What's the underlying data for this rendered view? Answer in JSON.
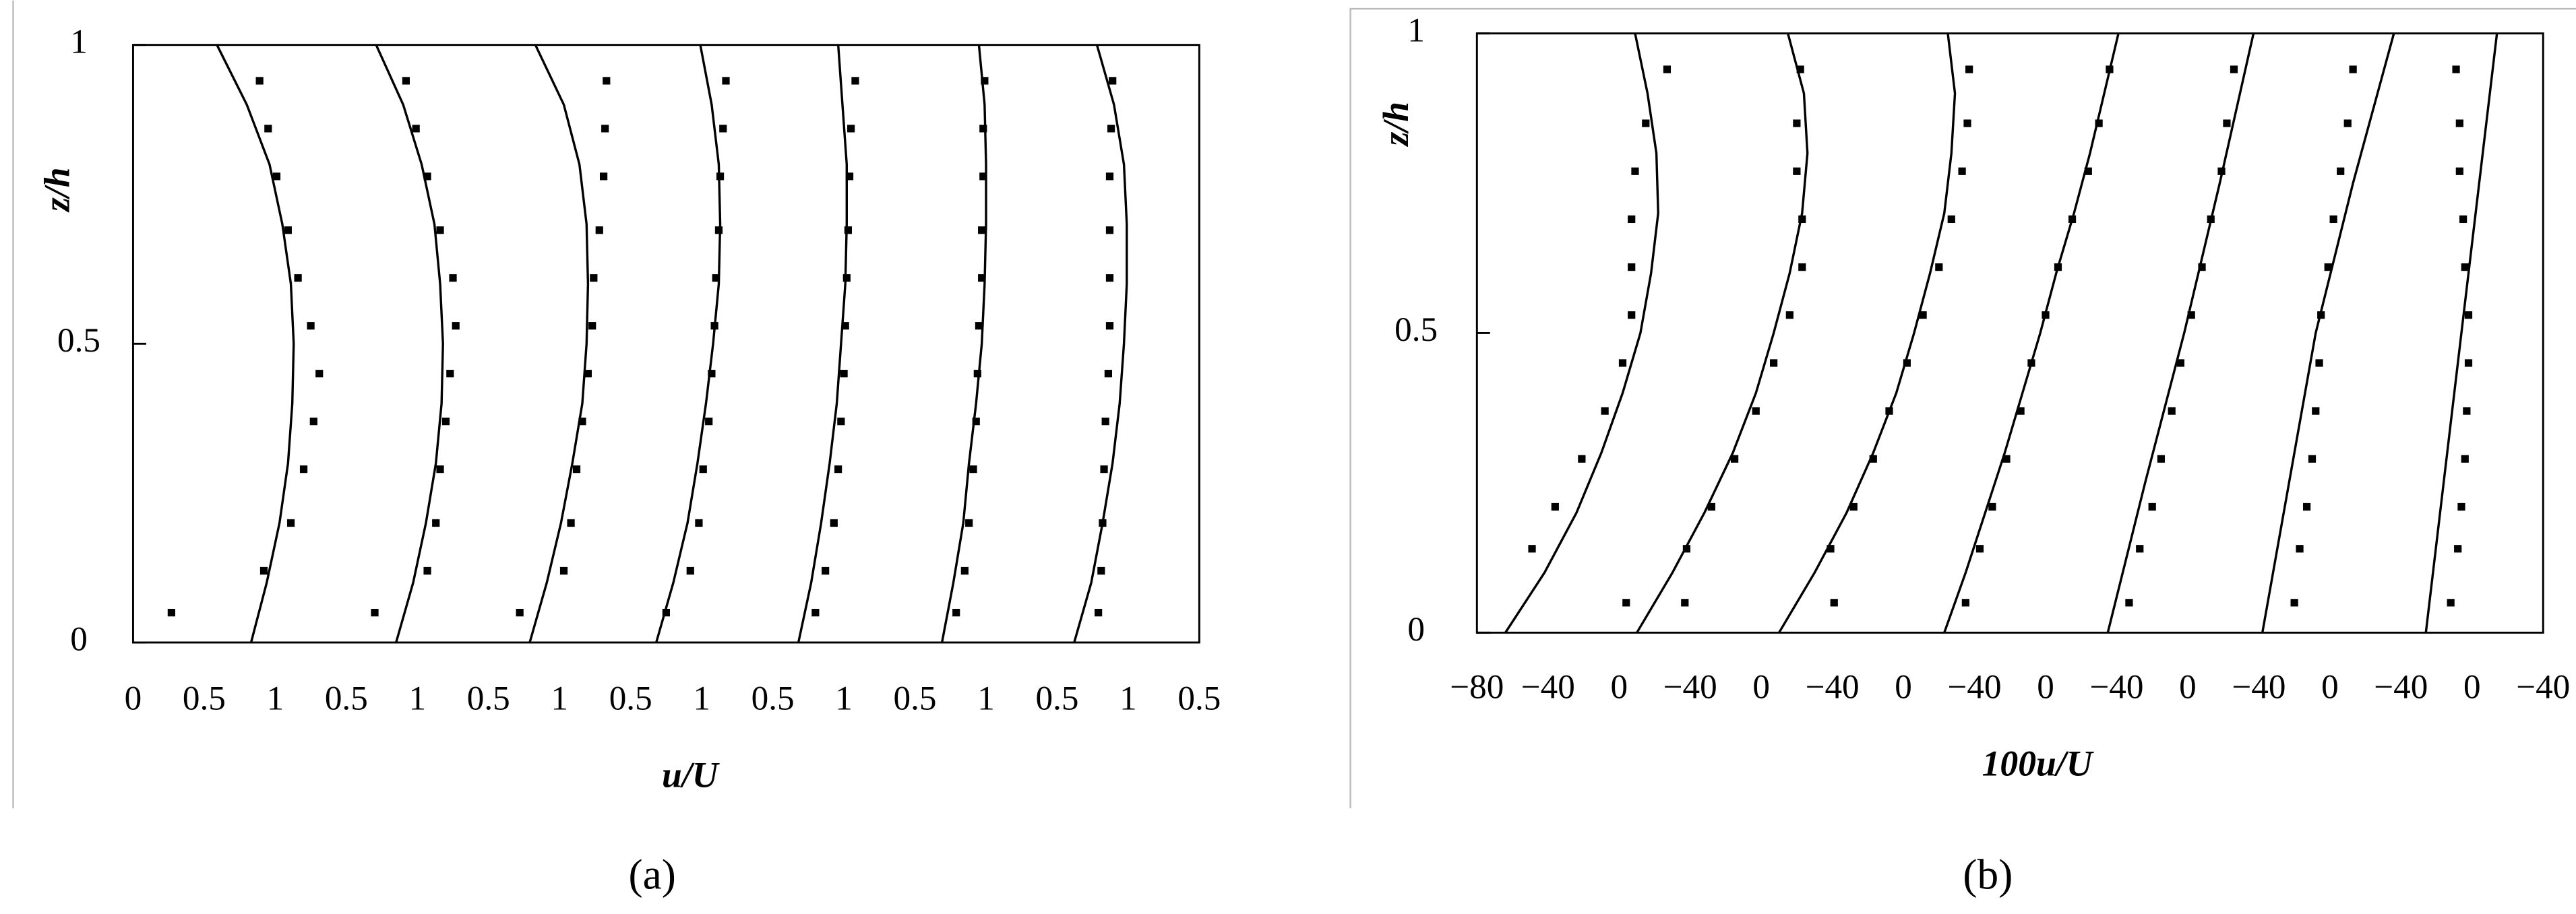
{
  "chart_data": [
    {
      "type": "scatter",
      "panel_label": "(a)",
      "xlabel": "u/U",
      "ylabel": "z/h",
      "xlim": [
        0,
        7.5
      ],
      "ylim": [
        0,
        1
      ],
      "yticks": [
        0,
        0.5,
        1
      ],
      "xticks": [
        0,
        0.5,
        1,
        {
          "value": 1.5,
          "label": "0.5"
        },
        {
          "value": 2,
          "label": "1"
        },
        {
          "value": 2.5,
          "label": "0.5"
        },
        {
          "value": 3,
          "label": "1"
        },
        {
          "value": 3.5,
          "label": "0.5"
        },
        {
          "value": 4,
          "label": "1"
        },
        {
          "value": 4.5,
          "label": "0.5"
        },
        {
          "value": 5,
          "label": "1"
        },
        {
          "value": 5.5,
          "label": "0.5"
        },
        {
          "value": 6,
          "label": "1"
        },
        {
          "value": 6.5,
          "label": "0.5"
        },
        {
          "value": 7,
          "label": "1"
        },
        {
          "value": 7.5,
          "label": "0.5"
        }
      ],
      "series": [
        {
          "type": "line",
          "color": "#000000",
          "x": [
            0.83,
            0.94,
            1.03,
            1.09,
            1.12,
            1.13,
            1.11,
            1.05,
            0.96,
            0.8,
            0.59
          ],
          "values": [
            0,
            0.1,
            0.2,
            0.3,
            0.4,
            0.5,
            0.6,
            0.7,
            0.8,
            0.9,
            1
          ]
        },
        {
          "type": "points",
          "color": "#000000",
          "x": [
            0.27,
            0.92,
            1.11,
            1.2,
            1.27,
            1.31,
            1.25,
            1.16,
            1.09,
            1.01,
            0.95,
            0.89
          ],
          "values": [
            0.05,
            0.12,
            0.2,
            0.29,
            0.37,
            0.45,
            0.53,
            0.61,
            0.69,
            0.78,
            0.86,
            0.94
          ]
        },
        {
          "type": "line",
          "color": "#000000",
          "x": [
            1.85,
            1.97,
            2.06,
            2.13,
            2.17,
            2.18,
            2.16,
            2.12,
            2.03,
            1.9,
            1.71
          ],
          "values": [
            0,
            0.1,
            0.2,
            0.3,
            0.4,
            0.5,
            0.6,
            0.7,
            0.8,
            0.9,
            1
          ]
        },
        {
          "type": "points",
          "color": "#000000",
          "x": [
            1.7,
            2.07,
            2.13,
            2.16,
            2.2,
            2.23,
            2.27,
            2.25,
            2.16,
            2.07,
            1.99,
            1.92
          ],
          "values": [
            0.05,
            0.12,
            0.2,
            0.29,
            0.37,
            0.45,
            0.53,
            0.61,
            0.69,
            0.78,
            0.86,
            0.94
          ]
        },
        {
          "type": "line",
          "color": "#000000",
          "x": [
            2.79,
            2.91,
            3.01,
            3.09,
            3.16,
            3.19,
            3.2,
            3.19,
            3.14,
            3.03,
            2.83
          ],
          "values": [
            0,
            0.1,
            0.2,
            0.3,
            0.4,
            0.5,
            0.6,
            0.7,
            0.8,
            0.9,
            1
          ]
        },
        {
          "type": "points",
          "color": "#000000",
          "x": [
            2.72,
            3.03,
            3.08,
            3.12,
            3.16,
            3.2,
            3.23,
            3.24,
            3.28,
            3.31,
            3.32,
            3.33
          ],
          "values": [
            0.05,
            0.12,
            0.2,
            0.29,
            0.37,
            0.45,
            0.53,
            0.61,
            0.69,
            0.78,
            0.86,
            0.94
          ]
        },
        {
          "type": "line",
          "color": "#000000",
          "x": [
            3.68,
            3.8,
            3.9,
            3.97,
            4.03,
            4.08,
            4.12,
            4.13,
            4.12,
            4.07,
            3.99
          ],
          "values": [
            0,
            0.1,
            0.2,
            0.3,
            0.4,
            0.5,
            0.6,
            0.7,
            0.8,
            0.9,
            1
          ]
        },
        {
          "type": "points",
          "color": "#000000",
          "x": [
            3.75,
            3.92,
            3.98,
            4.01,
            4.05,
            4.07,
            4.09,
            4.1,
            4.12,
            4.13,
            4.15,
            4.17
          ],
          "values": [
            0.05,
            0.12,
            0.2,
            0.29,
            0.37,
            0.45,
            0.53,
            0.61,
            0.69,
            0.78,
            0.86,
            0.94
          ]
        },
        {
          "type": "line",
          "color": "#000000",
          "x": [
            4.68,
            4.77,
            4.84,
            4.9,
            4.95,
            4.98,
            5.01,
            5.02,
            5.02,
            4.99,
            4.96
          ],
          "values": [
            0,
            0.1,
            0.2,
            0.3,
            0.4,
            0.5,
            0.6,
            0.7,
            0.8,
            0.9,
            1
          ]
        },
        {
          "type": "points",
          "color": "#000000",
          "x": [
            4.8,
            4.87,
            4.93,
            4.96,
            4.98,
            5,
            5.01,
            5.02,
            5.03,
            5.04,
            5.05,
            5.08
          ],
          "values": [
            0.05,
            0.12,
            0.2,
            0.29,
            0.37,
            0.45,
            0.53,
            0.61,
            0.69,
            0.78,
            0.86,
            0.94
          ]
        },
        {
          "type": "line",
          "color": "#000000",
          "x": [
            5.69,
            5.77,
            5.84,
            5.88,
            5.93,
            5.97,
            5.99,
            6,
            6,
            5.99,
            5.95
          ],
          "values": [
            0,
            0.1,
            0.2,
            0.3,
            0.4,
            0.5,
            0.6,
            0.7,
            0.8,
            0.9,
            1
          ]
        },
        {
          "type": "points",
          "color": "#000000",
          "x": [
            5.79,
            5.85,
            5.88,
            5.91,
            5.93,
            5.94,
            5.95,
            5.97,
            5.97,
            5.98,
            5.98,
            5.99
          ],
          "values": [
            0.05,
            0.12,
            0.2,
            0.29,
            0.37,
            0.45,
            0.53,
            0.61,
            0.69,
            0.78,
            0.86,
            0.94
          ]
        },
        {
          "type": "line",
          "color": "#000000",
          "x": [
            6.62,
            6.74,
            6.82,
            6.89,
            6.94,
            6.97,
            6.99,
            6.99,
            6.97,
            6.9,
            6.78
          ],
          "values": [
            0,
            0.1,
            0.2,
            0.3,
            0.4,
            0.5,
            0.6,
            0.7,
            0.8,
            0.9,
            1
          ]
        },
        {
          "type": "points",
          "color": "#000000",
          "x": [
            6.79,
            6.81,
            6.82,
            6.83,
            6.84,
            6.86,
            6.87,
            6.87,
            6.87,
            6.87,
            6.88,
            6.89
          ],
          "values": [
            0.05,
            0.12,
            0.2,
            0.29,
            0.37,
            0.45,
            0.53,
            0.61,
            0.69,
            0.78,
            0.86,
            0.94
          ]
        }
      ]
    },
    {
      "type": "scatter",
      "panel_label": "(b)",
      "xlabel": "100u/U",
      "ylabel": "z/h",
      "xlim": [
        0,
        600
      ],
      "ylim": [
        0,
        1
      ],
      "yticks": [
        0,
        0.5,
        1
      ],
      "xticks": [
        {
          "value": 0,
          "label": "−80"
        },
        {
          "value": 40,
          "label": "−40"
        },
        {
          "value": 80,
          "label": "0"
        },
        {
          "value": 120,
          "label": "−40"
        },
        {
          "value": 160,
          "label": "0"
        },
        {
          "value": 200,
          "label": "−40"
        },
        {
          "value": 240,
          "label": "0"
        },
        {
          "value": 280,
          "label": "−40"
        },
        {
          "value": 320,
          "label": "0"
        },
        {
          "value": 360,
          "label": "−40"
        },
        {
          "value": 400,
          "label": "0"
        },
        {
          "value": 440,
          "label": "−40"
        },
        {
          "value": 480,
          "label": "0"
        },
        {
          "value": 520,
          "label": "−40"
        },
        {
          "value": 560,
          "label": "0"
        },
        {
          "value": 600,
          "label": "−40"
        }
      ],
      "series": [
        {
          "type": "line",
          "color": "#000000",
          "x": [
            16,
            38,
            56,
            70,
            82,
            92,
            98,
            102,
            101,
            96,
            89
          ],
          "values": [
            0,
            0.1,
            0.2,
            0.3,
            0.4,
            0.5,
            0.6,
            0.7,
            0.8,
            0.9,
            1
          ]
        },
        {
          "type": "points",
          "color": "#000000",
          "x": [
            84,
            31,
            44,
            59,
            72,
            82,
            87,
            87,
            87,
            89,
            95,
            107
          ],
          "values": [
            0.05,
            0.14,
            0.21,
            0.29,
            0.37,
            0.45,
            0.53,
            0.61,
            0.69,
            0.77,
            0.85,
            0.94
          ]
        },
        {
          "type": "line",
          "color": "#000000",
          "x": [
            90,
            110,
            128,
            144,
            157,
            167,
            176,
            183,
            186,
            184,
            175
          ],
          "values": [
            0,
            0.1,
            0.2,
            0.3,
            0.4,
            0.5,
            0.6,
            0.7,
            0.8,
            0.9,
            1
          ]
        },
        {
          "type": "points",
          "color": "#000000",
          "x": [
            117,
            118,
            132,
            145,
            157,
            167,
            176,
            183,
            183,
            180,
            180,
            182
          ],
          "values": [
            0.05,
            0.14,
            0.21,
            0.29,
            0.37,
            0.45,
            0.53,
            0.61,
            0.69,
            0.77,
            0.85,
            0.94
          ]
        },
        {
          "type": "line",
          "color": "#000000",
          "x": [
            170,
            190,
            208,
            223,
            236,
            246,
            255,
            263,
            267,
            269,
            265
          ],
          "values": [
            0,
            0.1,
            0.2,
            0.3,
            0.4,
            0.5,
            0.6,
            0.7,
            0.8,
            0.9,
            1
          ]
        },
        {
          "type": "points",
          "color": "#000000",
          "x": [
            201,
            199,
            212,
            223,
            232,
            242,
            251,
            260,
            267,
            273,
            276,
            277
          ],
          "values": [
            0.05,
            0.14,
            0.21,
            0.29,
            0.37,
            0.45,
            0.53,
            0.61,
            0.69,
            0.77,
            0.85,
            0.94
          ]
        },
        {
          "type": "line",
          "color": "#000000",
          "x": [
            263,
            275,
            286,
            297,
            307,
            317,
            326,
            336,
            345,
            353,
            361
          ],
          "values": [
            0,
            0.1,
            0.2,
            0.3,
            0.4,
            0.5,
            0.6,
            0.7,
            0.8,
            0.9,
            1
          ]
        },
        {
          "type": "points",
          "color": "#000000",
          "x": [
            275,
            283,
            290,
            298,
            306,
            312,
            320,
            327,
            335,
            344,
            350,
            356
          ],
          "values": [
            0.05,
            0.14,
            0.21,
            0.29,
            0.37,
            0.45,
            0.53,
            0.61,
            0.69,
            0.77,
            0.85,
            0.94
          ]
        },
        {
          "type": "line",
          "color": "#000000",
          "x": [
            355,
            376,
            398,
            418,
            437
          ],
          "values": [
            0,
            0.25,
            0.5,
            0.75,
            1
          ]
        },
        {
          "type": "points",
          "color": "#000000",
          "x": [
            367,
            373,
            380,
            385,
            391,
            396,
            402,
            408,
            413,
            419,
            422,
            426
          ],
          "values": [
            0.05,
            0.14,
            0.21,
            0.29,
            0.37,
            0.45,
            0.53,
            0.61,
            0.69,
            0.77,
            0.85,
            0.94
          ]
        },
        {
          "type": "line",
          "color": "#000000",
          "x": [
            442,
            457,
            472,
            493,
            516
          ],
          "values": [
            0,
            0.25,
            0.5,
            0.75,
            1
          ]
        },
        {
          "type": "points",
          "color": "#000000",
          "x": [
            460,
            463,
            467,
            470,
            472,
            474,
            475,
            479,
            482,
            486,
            490,
            493
          ],
          "values": [
            0.05,
            0.14,
            0.21,
            0.29,
            0.37,
            0.45,
            0.53,
            0.61,
            0.69,
            0.77,
            0.85,
            0.94
          ]
        },
        {
          "type": "line",
          "color": "#000000",
          "x": [
            534,
            574
          ],
          "values": [
            0,
            1
          ]
        },
        {
          "type": "points",
          "color": "#000000",
          "x": [
            548,
            552,
            554,
            556,
            557,
            558,
            558,
            556,
            555,
            553,
            553,
            551
          ],
          "values": [
            0.05,
            0.14,
            0.21,
            0.29,
            0.37,
            0.45,
            0.53,
            0.61,
            0.69,
            0.77,
            0.85,
            0.94
          ]
        }
      ]
    }
  ]
}
